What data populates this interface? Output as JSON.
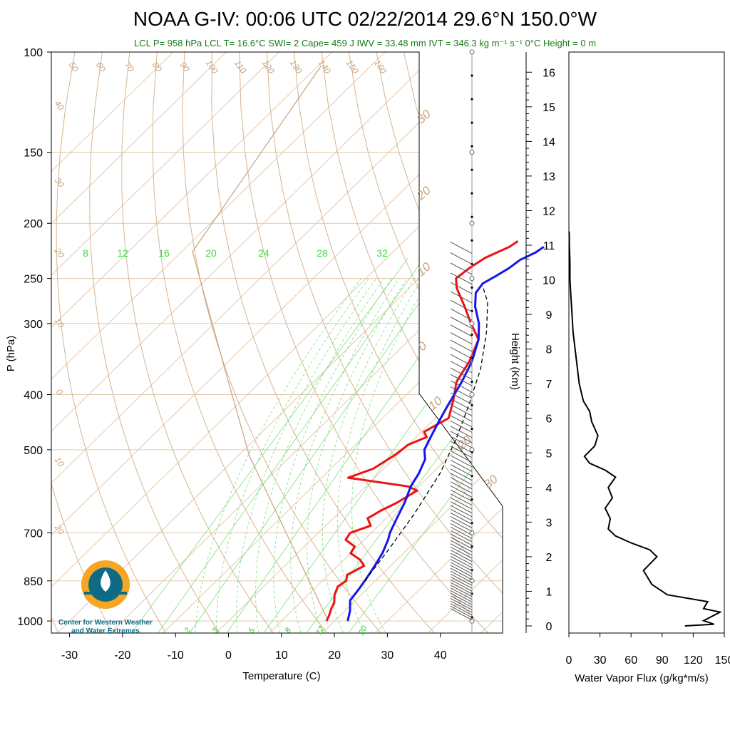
{
  "title": "NOAA G-IV: 00:06 UTC 02/22/2014  29.6°N 150.0°W",
  "info_line": "LCL P= 958 hPa  LCL T= 16.6°C  SWI= 2  Cape= 459 J  IWV = 33.48 mm  IVT = 346.3 kg m⁻¹ s⁻¹  0°C Height = 0 m",
  "logo": {
    "line1": "Center for Western Weather",
    "line2": "and Water Extremes"
  },
  "colors": {
    "temperature": "#ee1111",
    "dewpoint_or_parcel": "#1515ee",
    "parcel_dashed": "#000000",
    "dry_adiabat": "#c8a27c",
    "mixing_ratio": "#2ecc2e",
    "isotherm": "#c8a27c"
  },
  "chart_data": [
    {
      "type": "line",
      "subtype": "skew-T log-P",
      "xlabel": "Temperature (C)",
      "ylabel": "P (hPa)",
      "x_ticks": [
        "-30",
        "-20",
        "-10",
        "0",
        "10",
        "20",
        "30",
        "40"
      ],
      "y_ticks": [
        "100",
        "150",
        "200",
        "250",
        "300",
        "400",
        "500",
        "700",
        "850",
        "1000"
      ],
      "x_tick_values": [
        -30,
        -20,
        -10,
        0,
        10,
        20,
        30,
        40
      ],
      "y_tick_values": [
        100,
        150,
        200,
        250,
        300,
        400,
        500,
        700,
        850,
        1000
      ],
      "xlim": [
        -33,
        50
      ],
      "ylim": [
        1050,
        100
      ],
      "isotherm_labels": [
        "8",
        "12",
        "16",
        "20",
        "24",
        "28",
        "32"
      ],
      "adiabat_labels_top": [
        "50",
        "60",
        "70",
        "80",
        "90",
        "100",
        "110",
        "120",
        "130",
        "140",
        "150",
        "160"
      ],
      "adiabat_labels_left": [
        "40",
        "30",
        "20",
        "10",
        "0",
        "10",
        "20"
      ],
      "adiabat_labels_right": [
        "30",
        "20",
        "10",
        "0",
        "10",
        "20",
        "30"
      ],
      "mixing_ratio_labels": [
        "2",
        "3",
        "5",
        "8",
        "12",
        "20"
      ],
      "series": [
        {
          "name": "Temperature",
          "color": "#ee1111",
          "points": [
            [
              18.5,
              1000
            ],
            [
              18.0,
              980
            ],
            [
              17.0,
              950
            ],
            [
              16.5,
              930
            ],
            [
              15.0,
              900
            ],
            [
              14.0,
              870
            ],
            [
              14.5,
              850
            ],
            [
              13.5,
              830
            ],
            [
              15.0,
              800
            ],
            [
              13.0,
              780
            ],
            [
              10.0,
              760
            ],
            [
              9.5,
              740
            ],
            [
              6.5,
              720
            ],
            [
              6.0,
              700
            ],
            [
              8.5,
              680
            ],
            [
              6.5,
              660
            ],
            [
              7.5,
              640
            ],
            [
              9.0,
              620
            ],
            [
              10.0,
              600
            ],
            [
              10.5,
              590
            ],
            [
              8.0,
              580
            ],
            [
              -5.0,
              560
            ],
            [
              -2.0,
              540
            ],
            [
              -0.5,
              510
            ],
            [
              0.0,
              490
            ],
            [
              2.0,
              475
            ],
            [
              0.5,
              465
            ],
            [
              2.5,
              440
            ],
            [
              0.0,
              410
            ],
            [
              -3.0,
              380
            ],
            [
              -4.5,
              350
            ],
            [
              -7.0,
              320
            ],
            [
              -11.5,
              300
            ],
            [
              -16.0,
              280
            ],
            [
              -21.0,
              260
            ],
            [
              -23.0,
              250
            ],
            [
              -22.5,
              240
            ],
            [
              -21.5,
              230
            ],
            [
              -19.0,
              220
            ],
            [
              -18.5,
              215
            ]
          ]
        },
        {
          "name": "Dewpoint",
          "color": "#1515ee",
          "points": [
            [
              22.5,
              1000
            ],
            [
              21.0,
              960
            ],
            [
              19.0,
              920
            ],
            [
              18.5,
              880
            ],
            [
              18.0,
              850
            ],
            [
              17.0,
              800
            ],
            [
              16.0,
              760
            ],
            [
              14.5,
              720
            ],
            [
              13.5,
              700
            ],
            [
              12.0,
              660
            ],
            [
              10.5,
              620
            ],
            [
              8.5,
              580
            ],
            [
              7.5,
              550
            ],
            [
              6.0,
              520
            ],
            [
              4.0,
              500
            ],
            [
              3.0,
              480
            ],
            [
              1.5,
              450
            ],
            [
              0.0,
              420
            ],
            [
              -2.0,
              380
            ],
            [
              -4.0,
              350
            ],
            [
              -7.0,
              320
            ],
            [
              -10.0,
              300
            ],
            [
              -14.0,
              280
            ],
            [
              -16.5,
              265
            ],
            [
              -17.0,
              255
            ],
            [
              -16.0,
              248
            ],
            [
              -15.0,
              240
            ],
            [
              -14.5,
              232
            ],
            [
              -13.0,
              225
            ],
            [
              -12.5,
              220
            ]
          ]
        },
        {
          "name": "Parcel",
          "color": "#000000",
          "dashed": true,
          "points": [
            [
              18.0,
              850
            ],
            [
              16.5,
              750
            ],
            [
              14.5,
              650
            ],
            [
              11.5,
              550
            ],
            [
              8.0,
              480
            ],
            [
              4.0,
              420
            ],
            [
              -1.0,
              360
            ],
            [
              -7.0,
              310
            ],
            [
              -12.5,
              275
            ],
            [
              -16.0,
              260
            ]
          ]
        }
      ]
    },
    {
      "type": "line",
      "xlabel": "Water Vapor Flux (g/kg*m/s)",
      "ylabel": "Height (Km)",
      "x_ticks": [
        "0",
        "30",
        "60",
        "90",
        "120",
        "150"
      ],
      "y_ticks": [
        "0",
        "1",
        "2",
        "3",
        "4",
        "5",
        "6",
        "7",
        "8",
        "9",
        "10",
        "11",
        "12",
        "13",
        "14",
        "15",
        "16"
      ],
      "xlim": [
        0,
        150
      ],
      "ylim": [
        0,
        16.5
      ],
      "series": [
        {
          "points": [
            [
              112,
              0.0
            ],
            [
              140,
              0.05
            ],
            [
              130,
              0.15
            ],
            [
              146,
              0.4
            ],
            [
              130,
              0.5
            ],
            [
              134,
              0.7
            ],
            [
              95,
              0.9
            ],
            [
              80,
              1.2
            ],
            [
              72,
              1.6
            ],
            [
              85,
              2.0
            ],
            [
              78,
              2.2
            ],
            [
              60,
              2.4
            ],
            [
              45,
              2.6
            ],
            [
              38,
              2.8
            ],
            [
              40,
              3.1
            ],
            [
              35,
              3.4
            ],
            [
              42,
              3.7
            ],
            [
              38,
              4.0
            ],
            [
              45,
              4.3
            ],
            [
              35,
              4.5
            ],
            [
              20,
              4.7
            ],
            [
              15,
              4.9
            ],
            [
              25,
              5.2
            ],
            [
              28,
              5.5
            ],
            [
              22,
              5.9
            ],
            [
              20,
              6.2
            ],
            [
              14,
              6.5
            ],
            [
              10,
              7.0
            ],
            [
              8,
              7.5
            ],
            [
              6,
              8.0
            ],
            [
              4,
              8.5
            ],
            [
              3,
              9.0
            ],
            [
              2,
              9.5
            ],
            [
              1,
              10.0
            ],
            [
              1,
              10.5
            ],
            [
              0.5,
              11.0
            ],
            [
              0.3,
              11.4
            ]
          ]
        }
      ]
    }
  ]
}
